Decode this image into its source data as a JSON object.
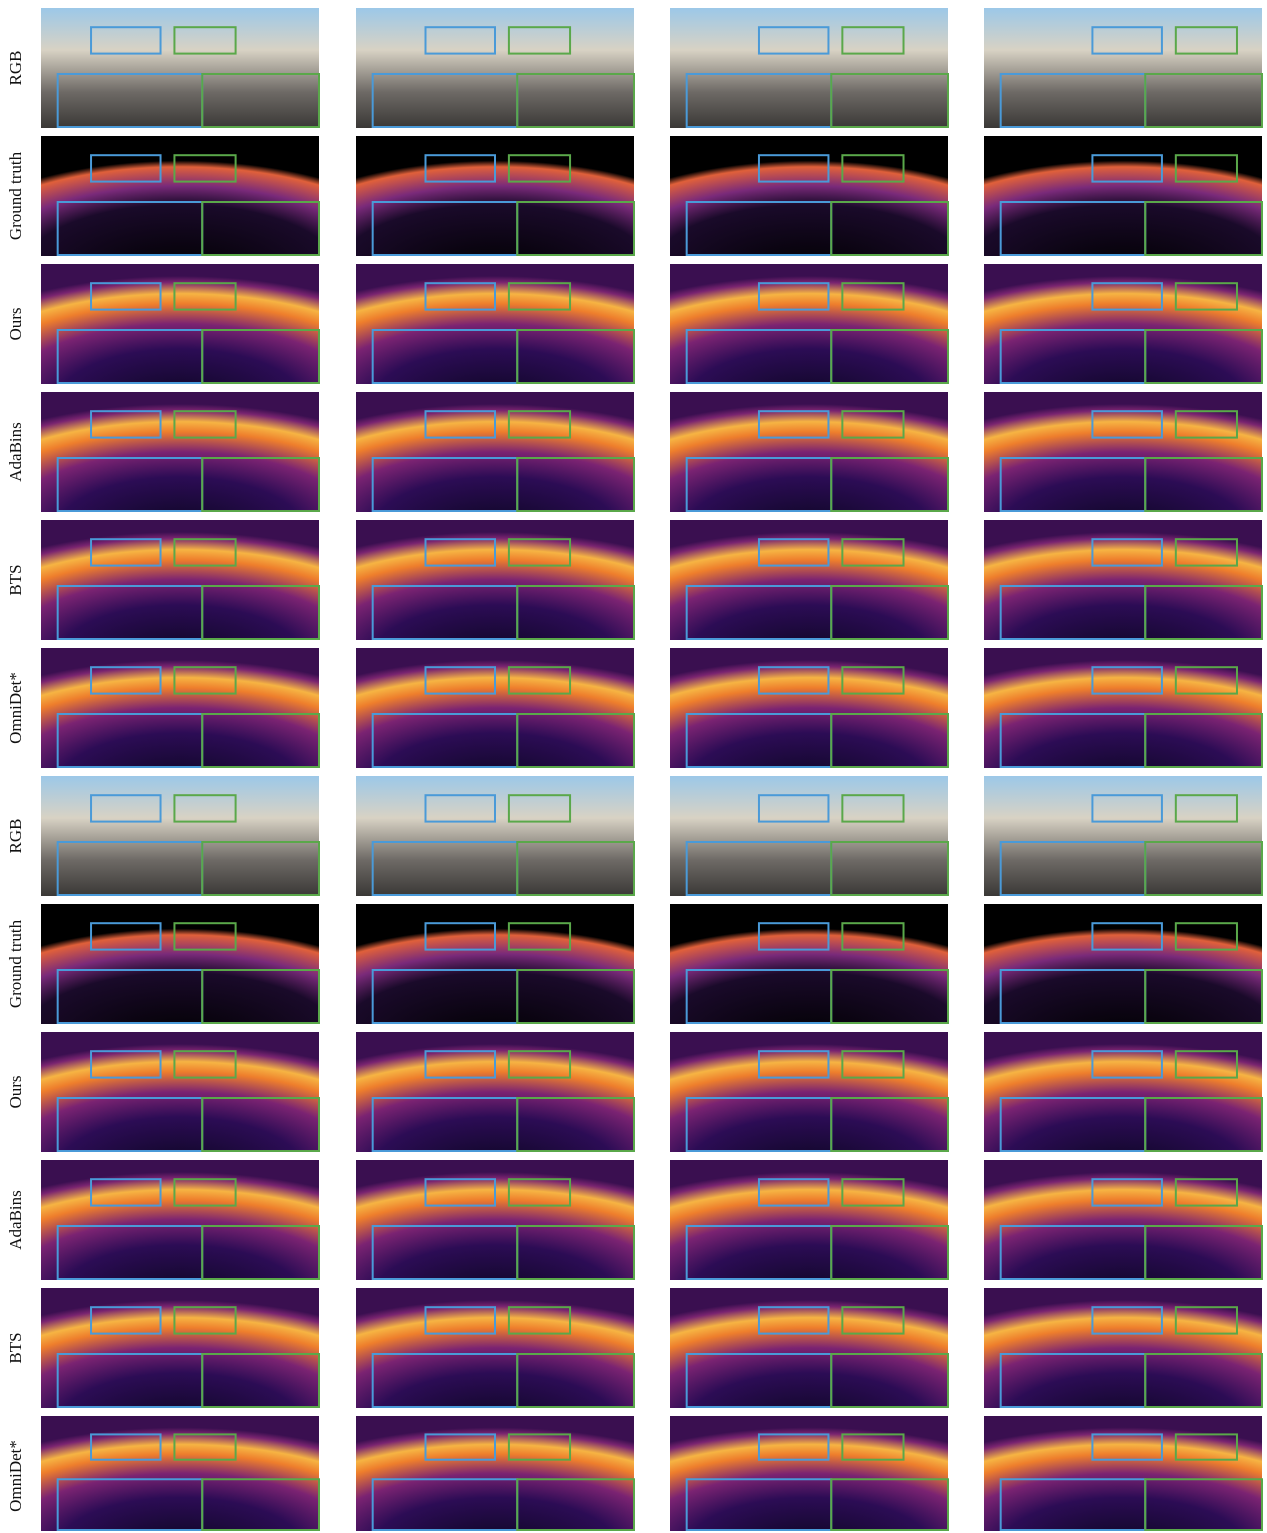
{
  "row_labels": [
    "RGB",
    "Ground truth",
    "Ours",
    "AdaBins",
    "BTS",
    "OmniDet*",
    "RGB",
    "Ground truth",
    "Ours",
    "AdaBins",
    "BTS",
    "OmniDet*"
  ]
}
